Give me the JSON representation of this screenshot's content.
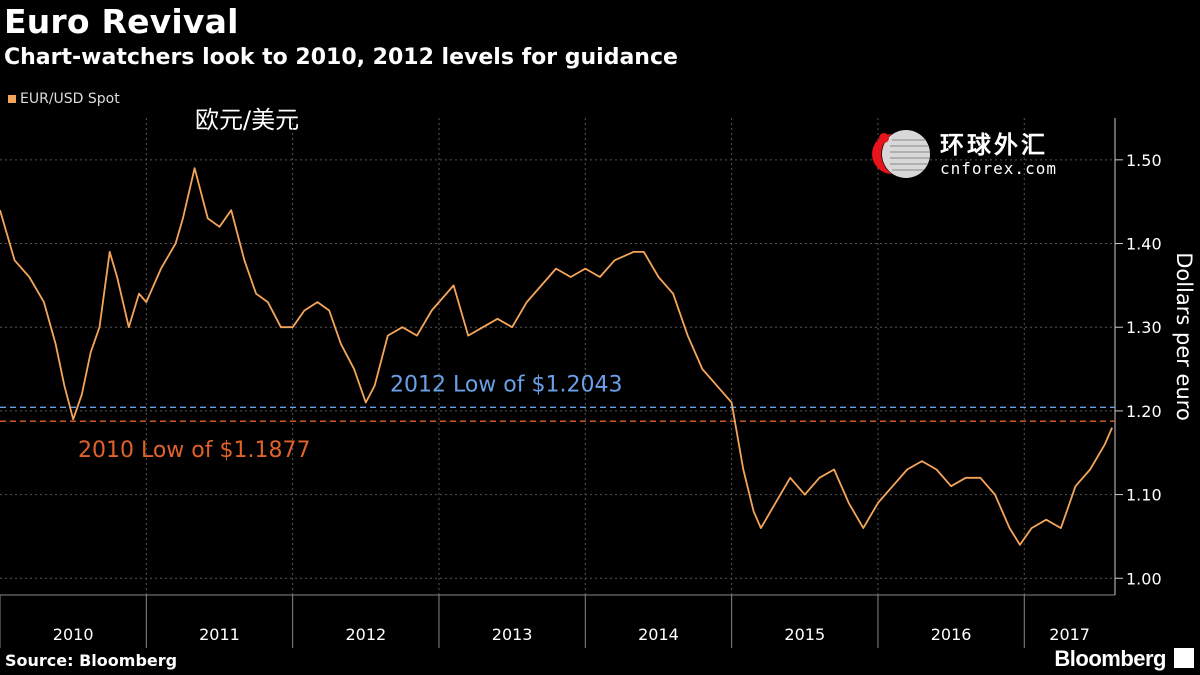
{
  "header": {
    "title": "Euro Revival",
    "subtitle": "Chart-watchers look to 2010, 2012 levels for guidance"
  },
  "legend": {
    "label": "EUR/USD Spot",
    "color": "#f5a55a"
  },
  "overlay_label": "欧元/美元",
  "watermark": {
    "cn": "环球外汇",
    "en": "cnforex.com"
  },
  "footer": {
    "source": "Source: Bloomberg",
    "brand": "Bloomberg"
  },
  "colors": {
    "line": "#f5a55a",
    "low2012": "#6aa0e8",
    "low2010": "#e0622a",
    "grid": "#555555"
  },
  "chart_data": {
    "type": "line",
    "ylabel": "Dollars per euro",
    "ylim": [
      0.98,
      1.55
    ],
    "yticks": [
      1.0,
      1.1,
      1.2,
      1.3,
      1.4,
      1.5
    ],
    "ytick_labels": [
      "1.00",
      "1.10",
      "1.20",
      "1.30",
      "1.40",
      "1.50"
    ],
    "x_categories": [
      "2010",
      "2011",
      "2012",
      "2013",
      "2014",
      "2015",
      "2016",
      "2017"
    ],
    "xlim": [
      2010.0,
      2017.62
    ],
    "reference_lines": [
      {
        "label": "2012 Low of $1.2043",
        "value": 1.2043
      },
      {
        "label": "2010 Low of $1.1877",
        "value": 1.1877
      }
    ],
    "series": [
      {
        "name": "EUR/USD Spot",
        "x": [
          2010.0,
          2010.1,
          2010.2,
          2010.3,
          2010.38,
          2010.44,
          2010.5,
          2010.56,
          2010.62,
          2010.68,
          2010.75,
          2010.8,
          2010.88,
          2010.95,
          2011.0,
          2011.1,
          2011.2,
          2011.25,
          2011.33,
          2011.42,
          2011.5,
          2011.58,
          2011.67,
          2011.75,
          2011.83,
          2011.92,
          2012.0,
          2012.08,
          2012.17,
          2012.25,
          2012.33,
          2012.42,
          2012.5,
          2012.56,
          2012.65,
          2012.75,
          2012.85,
          2012.95,
          2013.0,
          2013.1,
          2013.2,
          2013.3,
          2013.4,
          2013.5,
          2013.6,
          2013.7,
          2013.8,
          2013.9,
          2014.0,
          2014.1,
          2014.2,
          2014.33,
          2014.4,
          2014.5,
          2014.6,
          2014.7,
          2014.8,
          2014.9,
          2015.0,
          2015.08,
          2015.15,
          2015.2,
          2015.3,
          2015.4,
          2015.5,
          2015.6,
          2015.7,
          2015.8,
          2015.9,
          2016.0,
          2016.1,
          2016.2,
          2016.3,
          2016.4,
          2016.5,
          2016.6,
          2016.7,
          2016.8,
          2016.9,
          2016.97,
          2017.05,
          2017.15,
          2017.25,
          2017.35,
          2017.45,
          2017.55,
          2017.6
        ],
        "y": [
          1.44,
          1.38,
          1.36,
          1.33,
          1.28,
          1.23,
          1.19,
          1.22,
          1.27,
          1.3,
          1.39,
          1.36,
          1.3,
          1.34,
          1.33,
          1.37,
          1.4,
          1.43,
          1.49,
          1.43,
          1.42,
          1.44,
          1.38,
          1.34,
          1.33,
          1.3,
          1.3,
          1.32,
          1.33,
          1.32,
          1.28,
          1.25,
          1.21,
          1.23,
          1.29,
          1.3,
          1.29,
          1.32,
          1.33,
          1.35,
          1.29,
          1.3,
          1.31,
          1.3,
          1.33,
          1.35,
          1.37,
          1.36,
          1.37,
          1.36,
          1.38,
          1.39,
          1.39,
          1.36,
          1.34,
          1.29,
          1.25,
          1.23,
          1.21,
          1.13,
          1.08,
          1.06,
          1.09,
          1.12,
          1.1,
          1.12,
          1.13,
          1.09,
          1.06,
          1.09,
          1.11,
          1.13,
          1.14,
          1.13,
          1.11,
          1.12,
          1.12,
          1.1,
          1.06,
          1.04,
          1.06,
          1.07,
          1.06,
          1.11,
          1.13,
          1.16,
          1.18
        ]
      }
    ]
  }
}
